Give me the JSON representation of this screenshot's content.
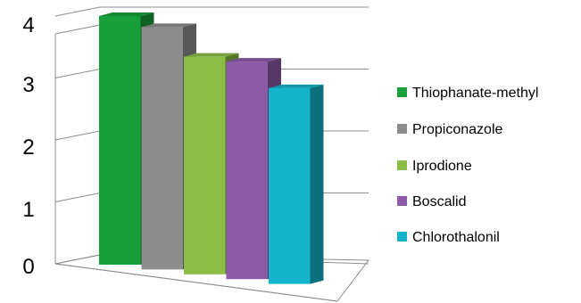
{
  "chart_data": {
    "type": "bar",
    "style": "3d-clustered-column",
    "title": "",
    "xlabel": "",
    "ylabel": "",
    "categories": [
      ""
    ],
    "ylim": [
      0,
      4
    ],
    "yticks": [
      "0",
      "1",
      "2",
      "3",
      "4"
    ],
    "grid": true,
    "legend_position": "right",
    "series": [
      {
        "name": "Thiophanate-methyl",
        "values": [
          4.0
        ],
        "color": "#17a03a"
      },
      {
        "name": "Propiconazole",
        "values": [
          3.9
        ],
        "color": "#8c8c8c"
      },
      {
        "name": "Iprodione",
        "values": [
          3.5
        ],
        "color": "#8cbd44"
      },
      {
        "name": "Boscalid",
        "values": [
          3.5
        ],
        "color": "#8c5ba8"
      },
      {
        "name": "Chlorothalonil",
        "values": [
          3.15
        ],
        "color": "#13b3cb"
      }
    ]
  }
}
